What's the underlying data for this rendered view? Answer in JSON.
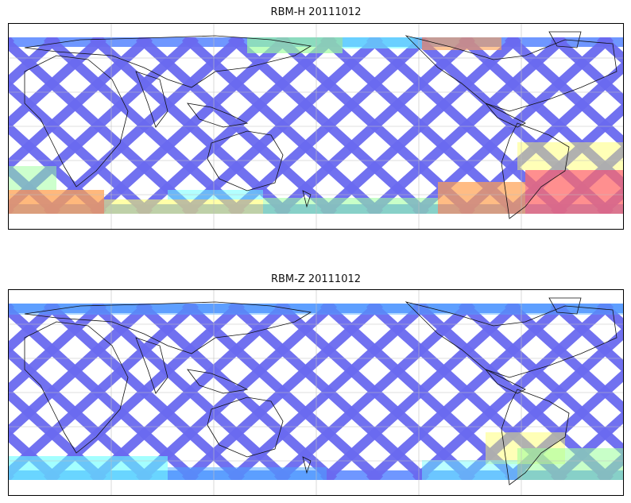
{
  "figure": {
    "panels": [
      {
        "id": "rbm-h",
        "title": "RBM-H 20111012",
        "background": "#ffffff",
        "track_color": "#6a6af0",
        "highlight_colors": [
          "#ffa050",
          "#ff6a6a",
          "#9bff9b",
          "#ffff60",
          "#66ffff",
          "#4aa8ff"
        ]
      },
      {
        "id": "rbm-z",
        "title": "RBM-Z 20111012",
        "background": "#ffffff",
        "track_color": "#6a6af0",
        "highlight_colors": [
          "#66ffff",
          "#9bff9b",
          "#ffff60",
          "#4aa8ff"
        ]
      }
    ]
  }
}
